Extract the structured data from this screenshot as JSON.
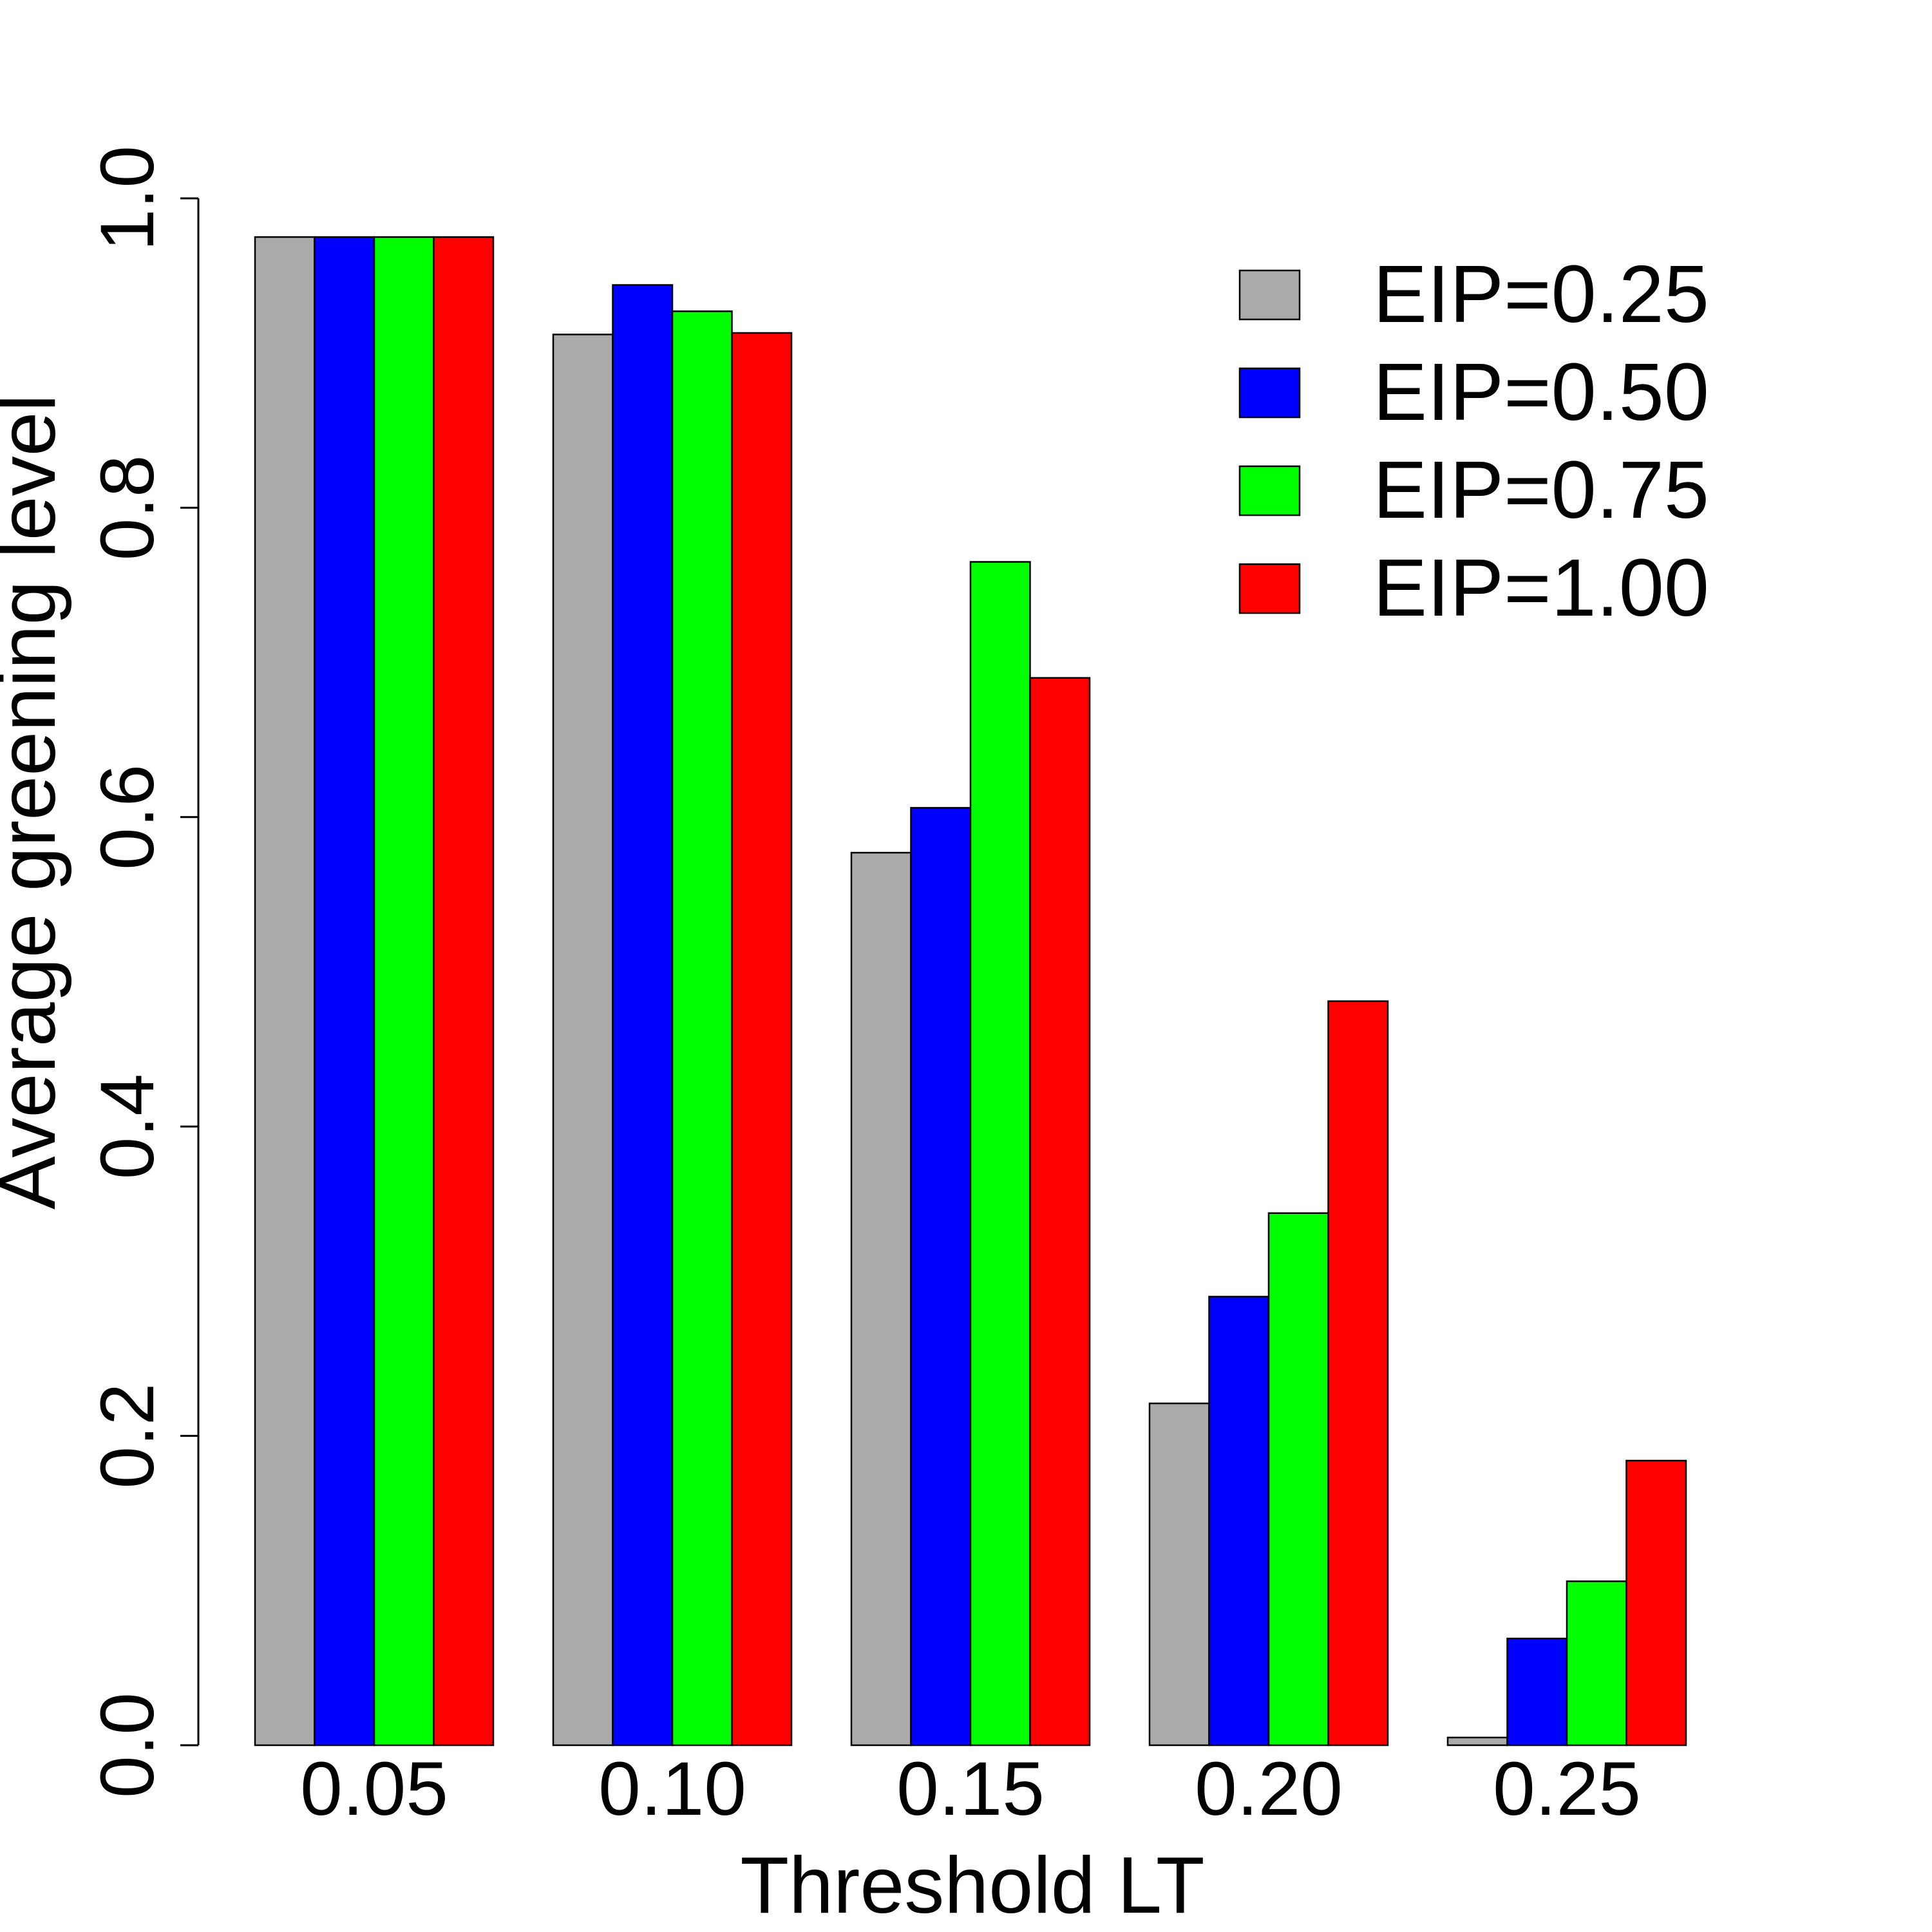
{
  "chart_data": {
    "type": "bar",
    "xlabel": "Threshold LT",
    "ylabel": "Average greening level",
    "categories": [
      "0.05",
      "0.10",
      "0.15",
      "0.20",
      "0.25"
    ],
    "ylim": [
      0,
      1.0
    ],
    "yticks": [
      "0.0",
      "0.2",
      "0.4",
      "0.6",
      "0.8",
      "1.0"
    ],
    "grid": false,
    "legend_position": "top-right",
    "series": [
      {
        "name": "EIP=0.25",
        "color": "#aaaaaa",
        "values": [
          0.975,
          0.912,
          0.577,
          0.221,
          0.005
        ]
      },
      {
        "name": "EIP=0.50",
        "color": "#0000ff",
        "values": [
          0.975,
          0.944,
          0.606,
          0.29,
          0.069
        ]
      },
      {
        "name": "EIP=0.75",
        "color": "#00ff00",
        "values": [
          0.975,
          0.927,
          0.765,
          0.344,
          0.106
        ]
      },
      {
        "name": "EIP=1.00",
        "color": "#ff0000",
        "values": [
          0.975,
          0.913,
          0.69,
          0.481,
          0.184
        ]
      }
    ]
  }
}
